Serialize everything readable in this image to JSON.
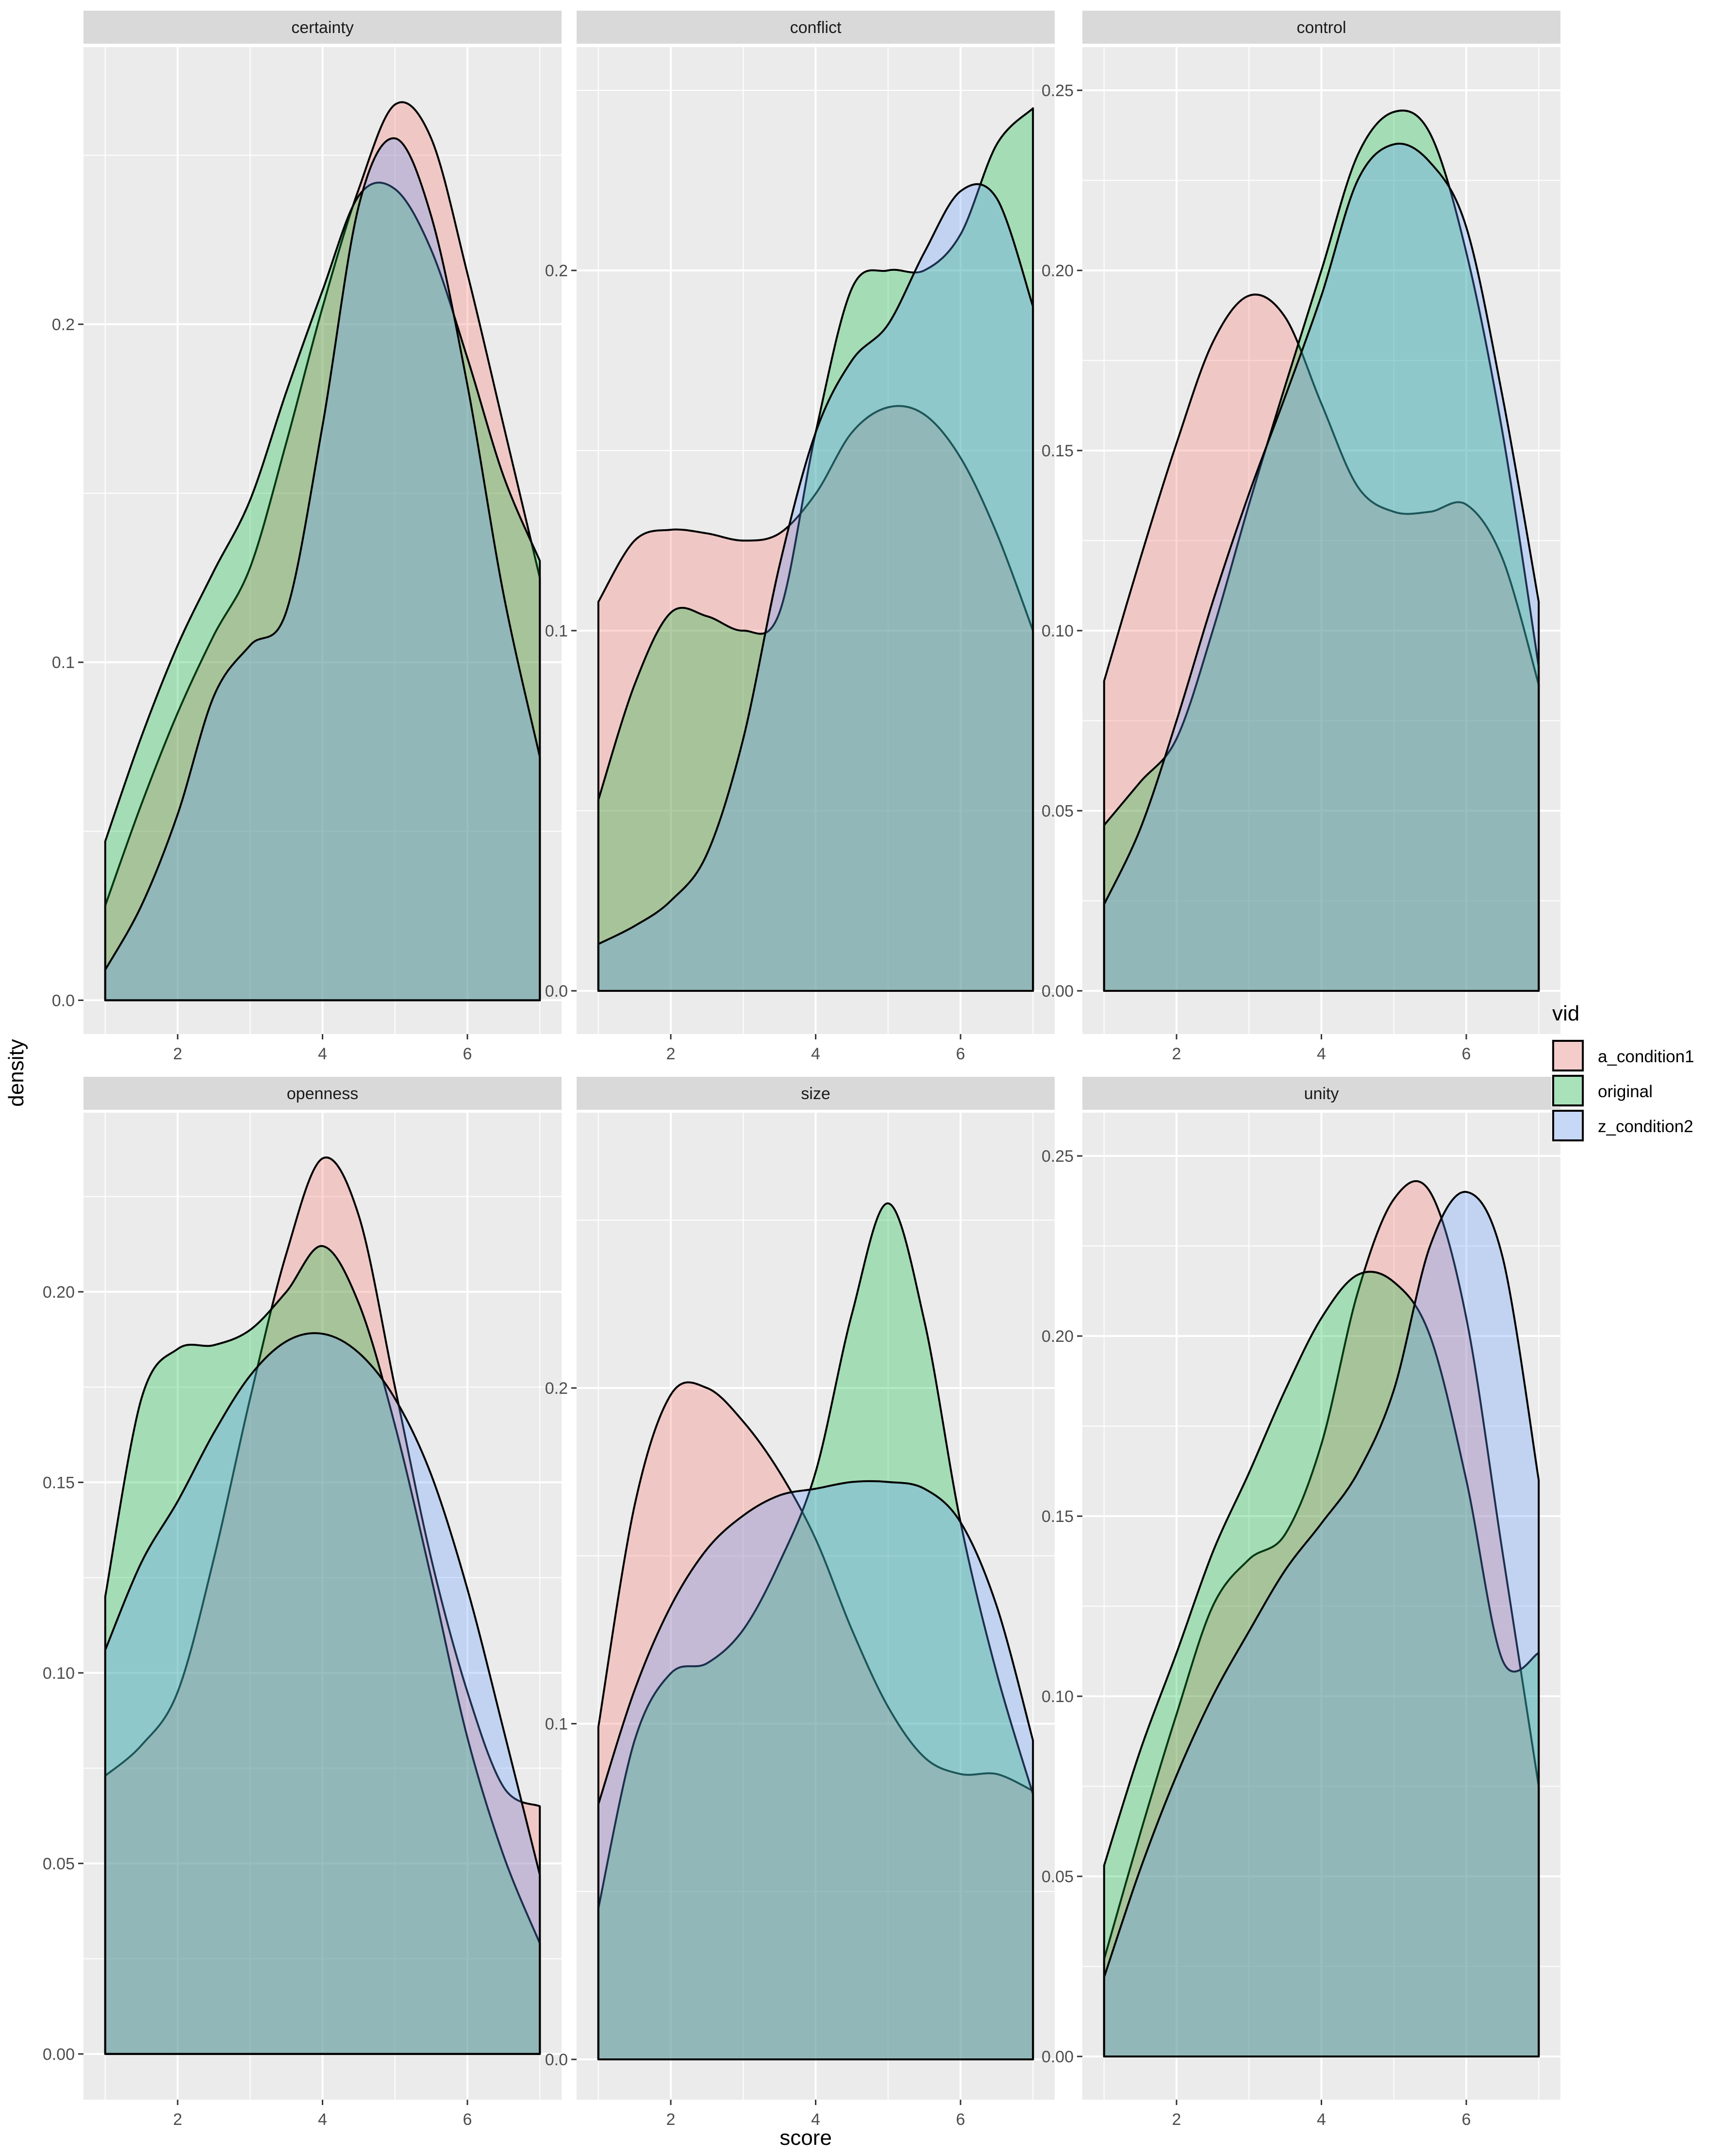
{
  "chart_data": {
    "type": "area",
    "subtype": "density",
    "xlabel": "score",
    "ylabel": "density",
    "xlim": [
      0.7,
      7.3
    ],
    "x_ticks": [
      2,
      4,
      6
    ],
    "x_domain": [
      1,
      7
    ],
    "x": [
      1,
      1.5,
      2,
      2.5,
      3,
      3.5,
      4,
      4.5,
      5,
      5.5,
      6,
      6.5,
      7
    ],
    "legend": {
      "title": "vid",
      "position": "right",
      "items": [
        {
          "label": "a_condition1",
          "color": "#F8766D"
        },
        {
          "label": "original",
          "color": "#00BA38"
        },
        {
          "label": "z_condition2",
          "color": "#619CFF"
        }
      ]
    },
    "fill_alpha": 0.3,
    "background": "#EBEBEB",
    "strip_background": "#D9D9D9",
    "grid": true,
    "panels": [
      {
        "title": "certainty",
        "ylim": [
          -0.01,
          0.282
        ],
        "y_ticks": [
          0.0,
          0.1,
          0.2
        ],
        "y_tick_labels": [
          "0.0",
          "0.1",
          "0.2"
        ],
        "series": [
          {
            "name": "a_condition1",
            "values": [
              0.028,
              0.058,
              0.085,
              0.108,
              0.128,
              0.165,
              0.205,
              0.24,
              0.265,
              0.255,
              0.215,
              0.17,
              0.125
            ]
          },
          {
            "name": "original",
            "values": [
              0.047,
              0.078,
              0.105,
              0.127,
              0.148,
              0.18,
              0.21,
              0.238,
              0.24,
              0.222,
              0.19,
              0.155,
              0.13
            ]
          },
          {
            "name": "z_condition2",
            "values": [
              0.009,
              0.028,
              0.055,
              0.09,
              0.105,
              0.115,
              0.17,
              0.235,
              0.255,
              0.232,
              0.182,
              0.12,
              0.072
            ]
          }
        ]
      },
      {
        "title": "conflict",
        "ylim": [
          -0.012,
          0.262
        ],
        "y_ticks": [
          0.0,
          0.1,
          0.2
        ],
        "y_tick_labels": [
          "0.0",
          "0.1",
          "0.2"
        ],
        "series": [
          {
            "name": "a_condition1",
            "values": [
              0.108,
              0.125,
              0.128,
              0.127,
              0.125,
              0.127,
              0.138,
              0.155,
              0.162,
              0.16,
              0.148,
              0.127,
              0.1
            ]
          },
          {
            "name": "original",
            "values": [
              0.053,
              0.085,
              0.105,
              0.104,
              0.1,
              0.105,
              0.155,
              0.195,
              0.2,
              0.2,
              0.21,
              0.235,
              0.245
            ]
          },
          {
            "name": "z_condition2",
            "values": [
              0.013,
              0.018,
              0.025,
              0.038,
              0.07,
              0.118,
              0.155,
              0.175,
              0.185,
              0.205,
              0.222,
              0.22,
              0.19
            ]
          }
        ]
      },
      {
        "title": "control",
        "ylim": [
          -0.012,
          0.262
        ],
        "y_ticks": [
          0.0,
          0.05,
          0.1,
          0.15,
          0.2,
          0.25
        ],
        "y_tick_labels": [
          "0.00",
          "0.05",
          "0.10",
          "0.15",
          "0.20",
          "0.25"
        ],
        "series": [
          {
            "name": "a_condition1",
            "values": [
              0.086,
              0.12,
              0.152,
              0.18,
              0.193,
              0.187,
              0.163,
              0.14,
              0.133,
              0.133,
              0.135,
              0.12,
              0.085
            ]
          },
          {
            "name": "original",
            "values": [
              0.046,
              0.058,
              0.07,
              0.1,
              0.135,
              0.168,
              0.2,
              0.232,
              0.244,
              0.238,
              0.205,
              0.155,
              0.09
            ]
          },
          {
            "name": "z_condition2",
            "values": [
              0.024,
              0.045,
              0.075,
              0.108,
              0.138,
              0.165,
              0.193,
              0.225,
              0.235,
              0.23,
              0.212,
              0.165,
              0.108
            ]
          }
        ]
      },
      {
        "title": "openness",
        "ylim": [
          -0.012,
          0.247
        ],
        "y_ticks": [
          0.0,
          0.05,
          0.1,
          0.15,
          0.2
        ],
        "y_tick_labels": [
          "0.00",
          "0.05",
          "0.10",
          "0.15",
          "0.20"
        ],
        "series": [
          {
            "name": "a_condition1",
            "values": [
              0.073,
              0.081,
              0.095,
              0.13,
              0.172,
              0.21,
              0.235,
              0.22,
              0.175,
              0.13,
              0.095,
              0.07,
              0.065
            ]
          },
          {
            "name": "original",
            "values": [
              0.12,
              0.172,
              0.185,
              0.186,
              0.19,
              0.2,
              0.212,
              0.197,
              0.165,
              0.125,
              0.083,
              0.052,
              0.029
            ]
          },
          {
            "name": "z_condition2",
            "values": [
              0.106,
              0.129,
              0.145,
              0.163,
              0.178,
              0.187,
              0.189,
              0.184,
              0.172,
              0.152,
              0.122,
              0.085,
              0.047
            ]
          }
        ]
      },
      {
        "title": "size",
        "ylim": [
          -0.012,
          0.282
        ],
        "y_ticks": [
          0.0,
          0.1,
          0.2
        ],
        "y_tick_labels": [
          "0.0",
          "0.1",
          "0.2"
        ],
        "series": [
          {
            "name": "a_condition1",
            "values": [
              0.099,
              0.165,
              0.198,
              0.2,
              0.19,
              0.175,
              0.155,
              0.128,
              0.105,
              0.09,
              0.085,
              0.085,
              0.08
            ]
          },
          {
            "name": "original",
            "values": [
              0.045,
              0.095,
              0.115,
              0.118,
              0.128,
              0.148,
              0.175,
              0.222,
              0.255,
              0.22,
              0.16,
              0.115,
              0.079
            ]
          },
          {
            "name": "z_condition2",
            "values": [
              0.076,
              0.11,
              0.135,
              0.152,
              0.162,
              0.168,
              0.17,
              0.172,
              0.172,
              0.17,
              0.16,
              0.135,
              0.095
            ]
          }
        ]
      },
      {
        "title": "unity",
        "ylim": [
          -0.012,
          0.262
        ],
        "y_ticks": [
          0.0,
          0.05,
          0.1,
          0.15,
          0.2,
          0.25
        ],
        "y_tick_labels": [
          "0.00",
          "0.05",
          "0.10",
          "0.15",
          "0.20",
          "0.25"
        ],
        "series": [
          {
            "name": "a_condition1",
            "values": [
              0.027,
              0.062,
              0.095,
              0.125,
              0.138,
              0.145,
              0.17,
              0.212,
              0.238,
              0.24,
              0.205,
              0.14,
              0.075
            ]
          },
          {
            "name": "original",
            "values": [
              0.053,
              0.085,
              0.112,
              0.14,
              0.162,
              0.185,
              0.205,
              0.217,
              0.215,
              0.2,
              0.16,
              0.11,
              0.112
            ]
          },
          {
            "name": "z_condition2",
            "values": [
              0.022,
              0.052,
              0.078,
              0.1,
              0.118,
              0.135,
              0.148,
              0.162,
              0.185,
              0.225,
              0.24,
              0.222,
              0.16
            ]
          }
        ]
      }
    ]
  }
}
